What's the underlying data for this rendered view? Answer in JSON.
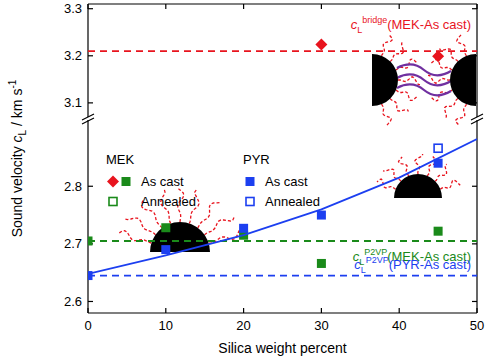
{
  "chart_data": [
    {
      "type": "scatter",
      "xlim": [
        0,
        50
      ],
      "xticks": [
        0,
        10,
        20,
        30,
        40,
        50
      ],
      "ylim": [
        3.07,
        3.31
      ],
      "yticks": [
        3.1,
        3.2,
        3.3
      ],
      "tick_labels": "y",
      "series": [
        {
          "name": "As cast",
          "group": 0,
          "color": "#e8141e",
          "marker": "diamond",
          "x": [
            30,
            45
          ],
          "values": [
            3.224,
            3.199
          ]
        },
        {
          "type": "line",
          "color": "#e8141e",
          "line_style": "dashed",
          "marker": "none",
          "x": [
            0,
            50
          ],
          "values": [
            3.21,
            3.21
          ]
        }
      ],
      "annotations": [
        {
          "symbol": "c",
          "sub": "L",
          "sup": "bridge",
          "text": "(MEK-As cast)",
          "color": "#e8141e"
        }
      ]
    },
    {
      "type": "scatter",
      "xlim": [
        0,
        50
      ],
      "xticks": [
        0,
        10,
        20,
        30,
        40,
        50
      ],
      "ylim": [
        2.58,
        2.915
      ],
      "yticks": [
        2.6,
        2.7,
        2.8
      ],
      "xlabel": "Silica weight percent",
      "ylabel": {
        "text": "Sound velocity ",
        "symbol": "c",
        "sub": "L",
        "unit": " / km s",
        "sup": "-1"
      },
      "legend": "upper left",
      "legend_groups": [
        "MEK",
        "PYR"
      ],
      "series": [
        {
          "name": "As cast",
          "group": 0,
          "color": "#1a8a1a",
          "marker": "square",
          "x": [
            0,
            10,
            20,
            30,
            45
          ],
          "values": [
            2.705,
            2.728,
            2.715,
            2.666,
            2.722
          ]
        },
        {
          "name": "Annealed",
          "group": 0,
          "color": "#1a8a1a",
          "marker": "square-open",
          "x": [],
          "values": []
        },
        {
          "name": "As cast",
          "group": 1,
          "color": "#1c3ff0",
          "marker": "square",
          "x": [
            0,
            10,
            20,
            30,
            45
          ],
          "values": [
            2.645,
            2.69,
            2.727,
            2.75,
            2.84
          ]
        },
        {
          "name": "Annealed",
          "group": 1,
          "color": "#1c3ff0",
          "marker": "square-open",
          "x": [
            45
          ],
          "values": [
            2.866
          ]
        },
        {
          "type": "line",
          "color": "#1a8a1a",
          "line_style": "dashed",
          "marker": "none",
          "x": [
            0,
            50
          ],
          "values": [
            2.705,
            2.705
          ]
        },
        {
          "type": "line",
          "color": "#1c3ff0",
          "line_style": "dashed",
          "marker": "none",
          "x": [
            0,
            50
          ],
          "values": [
            2.645,
            2.645
          ]
        },
        {
          "type": "line",
          "color": "#1c3ff0",
          "line_style": "solid",
          "marker": "none",
          "x": [
            0,
            10,
            20,
            30,
            40,
            50
          ],
          "values": [
            2.648,
            2.68,
            2.715,
            2.76,
            2.815,
            2.882
          ]
        }
      ],
      "annotations": [
        {
          "symbol": "c",
          "sub": "L",
          "sup": "P2VP",
          "text": "(MEK-As cast)",
          "color": "#1a8a1a"
        },
        {
          "symbol": "c",
          "sub": "L",
          "sup": "P2VP",
          "text": "(PYR-As cast)",
          "color": "#1c3ff0"
        }
      ]
    }
  ]
}
